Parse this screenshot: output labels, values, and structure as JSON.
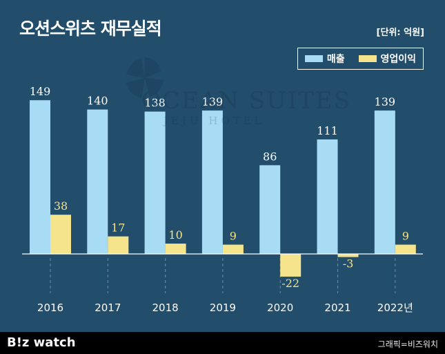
{
  "title": "오션스위츠 재무실적",
  "unit": "[단위: 억원]",
  "watermark": {
    "main": "OCEAN SUITES",
    "sub": "JEJU HOTEL"
  },
  "footer": {
    "logo": "B!z watch",
    "credit": "그래픽=비즈워치"
  },
  "colors": {
    "background": "#224d6b",
    "revenue": "#a8dcf5",
    "operating_profit": "#f5e48c",
    "footer": "#000000"
  },
  "chart_data": {
    "type": "bar",
    "title": "오션스위츠 재무실적",
    "unit": "[단위: 억원]",
    "categories": [
      "2016",
      "2017",
      "2018",
      "2019",
      "2020",
      "2021",
      "2022년"
    ],
    "series": [
      {
        "name": "매출",
        "values": [
          149,
          140,
          138,
          139,
          86,
          111,
          139
        ]
      },
      {
        "name": "영업이익",
        "values": [
          38,
          17,
          10,
          9,
          -22,
          -3,
          9
        ]
      }
    ],
    "legend": "top-right",
    "grid": false
  }
}
